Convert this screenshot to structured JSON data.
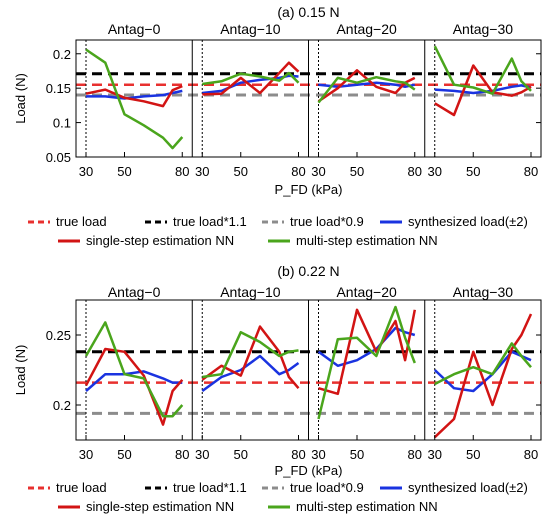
{
  "colors": {
    "true_load": "#e8302f",
    "true_load_1_1": "#000000",
    "true_load_0_9": "#8c8c8c",
    "synthesized": "#1a33e0",
    "single_step": "#d21414",
    "multi_step": "#4aa51c"
  },
  "chart_data": [
    {
      "type": "line",
      "title": "(a) 0.15 N",
      "xlabel": "P_FD (kPa)",
      "ylabel": "Load (N)",
      "ylim": [
        0.05,
        0.22
      ],
      "yticks": [
        0.05,
        0.1,
        0.15,
        0.2
      ],
      "ytick_labels": [
        "0.05",
        "0.1",
        "0.15",
        "0.2"
      ],
      "xlim": [
        30,
        80
      ],
      "xticks": [
        30,
        50,
        80
      ],
      "legend_placement": "below",
      "reference_lines": {
        "true_load": 0.155,
        "true_load_1_1": 0.171,
        "true_load_0_9": 0.14
      },
      "panels": [
        {
          "name": "Antag−0",
          "x": [
            30,
            40,
            50,
            60,
            70,
            75,
            80
          ],
          "series": [
            {
              "name": "synthesized load(±2)",
              "values": [
                0.138,
                0.138,
                0.135,
                0.138,
                0.14,
                0.143,
                0.146
              ]
            },
            {
              "name": "single-step estimation NN",
              "values": [
                0.142,
                0.148,
                0.136,
                0.131,
                0.124,
                0.147,
                0.153
              ]
            },
            {
              "name": "multi-step estimation NN",
              "values": [
                0.206,
                0.187,
                0.112,
                0.096,
                0.078,
                0.063,
                0.079
              ]
            }
          ]
        },
        {
          "name": "Antag−10",
          "x": [
            30,
            40,
            50,
            60,
            70,
            75,
            80
          ],
          "series": [
            {
              "name": "synthesized load(±2)",
              "values": [
                0.143,
                0.146,
                0.158,
                0.162,
                0.165,
                0.168,
                0.167
              ]
            },
            {
              "name": "single-step estimation NN",
              "values": [
                0.141,
                0.142,
                0.165,
                0.143,
                0.172,
                0.187,
                0.174
              ]
            },
            {
              "name": "multi-step estimation NN",
              "values": [
                0.156,
                0.16,
                0.171,
                0.167,
                0.161,
                0.172,
                0.158
              ]
            }
          ]
        },
        {
          "name": "Antag−20",
          "x": [
            30,
            40,
            50,
            60,
            70,
            75,
            80
          ],
          "series": [
            {
              "name": "synthesized load(±2)",
              "values": [
                0.155,
                0.152,
                0.155,
                0.158,
                0.155,
                0.152,
                0.155
              ]
            },
            {
              "name": "single-step estimation NN",
              "values": [
                0.131,
                0.15,
                0.176,
                0.152,
                0.143,
                0.158,
                0.165
              ]
            },
            {
              "name": "multi-step estimation NN",
              "values": [
                0.129,
                0.165,
                0.158,
                0.166,
                0.16,
                0.158,
                0.148
              ]
            }
          ]
        },
        {
          "name": "Antag−30",
          "x": [
            30,
            40,
            50,
            60,
            70,
            75,
            80
          ],
          "series": [
            {
              "name": "synthesized load(±2)",
              "values": [
                0.148,
                0.146,
                0.143,
                0.146,
                0.152,
                0.154,
                0.151
              ]
            },
            {
              "name": "single-step estimation NN",
              "values": [
                0.128,
                0.111,
                0.183,
                0.144,
                0.139,
                0.144,
                0.152
              ]
            },
            {
              "name": "multi-step estimation NN",
              "values": [
                0.211,
                0.155,
                0.151,
                0.142,
                0.193,
                0.16,
                0.146
              ]
            }
          ]
        }
      ]
    },
    {
      "type": "line",
      "title": "(b) 0.22 N",
      "xlabel": "P_FD (kPa)",
      "ylabel": "Load (N)",
      "ylim": [
        0.175,
        0.275
      ],
      "yticks": [
        0.2,
        0.25
      ],
      "ytick_labels": [
        "0.2",
        "0.25"
      ],
      "xlim": [
        30,
        80
      ],
      "xticks": [
        30,
        50,
        80
      ],
      "legend_placement": "below",
      "reference_lines": {
        "true_load": 0.216,
        "true_load_1_1": 0.238,
        "true_load_0_9": 0.194
      },
      "panels": [
        {
          "name": "Antag−0",
          "x": [
            30,
            40,
            50,
            60,
            70,
            75,
            80
          ],
          "series": [
            {
              "name": "synthesized load(±2)",
              "values": [
                0.21,
                0.222,
                0.222,
                0.224,
                0.219,
                0.216,
                0.216
              ]
            },
            {
              "name": "single-step estimation NN",
              "values": [
                0.214,
                0.24,
                0.238,
                0.221,
                0.186,
                0.21,
                0.218
              ]
            },
            {
              "name": "multi-step estimation NN",
              "values": [
                0.235,
                0.259,
                0.222,
                0.219,
                0.192,
                0.192,
                0.2
              ]
            }
          ]
        },
        {
          "name": "Antag−10",
          "x": [
            30,
            40,
            50,
            60,
            70,
            75,
            80
          ],
          "series": [
            {
              "name": "synthesized load(±2)",
              "values": [
                0.21,
                0.22,
                0.225,
                0.235,
                0.222,
                0.225,
                0.23
              ]
            },
            {
              "name": "single-step estimation NN",
              "values": [
                0.218,
                0.228,
                0.221,
                0.256,
                0.238,
                0.22,
                0.212
              ]
            },
            {
              "name": "multi-step estimation NN",
              "values": [
                0.22,
                0.222,
                0.252,
                0.245,
                0.235,
                0.238,
                0.239
              ]
            }
          ]
        },
        {
          "name": "Antag−20",
          "x": [
            30,
            40,
            50,
            60,
            70,
            75,
            80
          ],
          "series": [
            {
              "name": "synthesized load(±2)",
              "values": [
                0.238,
                0.228,
                0.232,
                0.24,
                0.255,
                0.252,
                0.25
              ]
            },
            {
              "name": "single-step estimation NN",
              "values": [
                0.212,
                0.208,
                0.268,
                0.238,
                0.26,
                0.232,
                0.268
              ]
            },
            {
              "name": "multi-step estimation NN",
              "values": [
                0.19,
                0.247,
                0.248,
                0.235,
                0.27,
                0.248,
                0.23
              ]
            }
          ]
        },
        {
          "name": "Antag−30",
          "x": [
            30,
            40,
            50,
            60,
            70,
            75,
            80
          ],
          "series": [
            {
              "name": "synthesized load(±2)",
              "values": [
                0.225,
                0.212,
                0.21,
                0.222,
                0.238,
                0.235,
                0.232
              ]
            },
            {
              "name": "single-step estimation NN",
              "values": [
                0.177,
                0.19,
                0.238,
                0.2,
                0.24,
                0.25,
                0.265
              ]
            },
            {
              "name": "multi-step estimation NN",
              "values": [
                0.215,
                0.222,
                0.227,
                0.222,
                0.244,
                0.235,
                0.227
              ]
            }
          ]
        }
      ]
    }
  ],
  "legend": {
    "true_load": "true load",
    "true_load_1_1": "true load*1.1",
    "true_load_0_9": "true load*0.9",
    "synthesized": "synthesized load(±2)",
    "single_step": "single-step estimation NN",
    "multi_step": "multi-step estimation NN"
  }
}
